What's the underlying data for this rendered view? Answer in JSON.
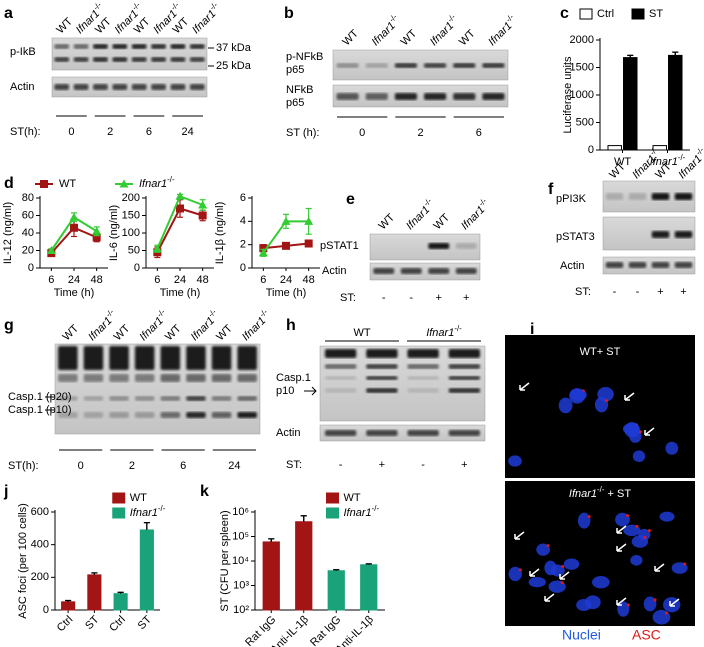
{
  "panel_letters": [
    "a",
    "b",
    "c",
    "d",
    "e",
    "f",
    "g",
    "h",
    "i",
    "j",
    "k"
  ],
  "blots": {
    "a": {
      "lanes": [
        {
          "text": "WT"
        },
        {
          "text": "Ifnar1",
          "sup": "-/-"
        },
        {
          "text": "WT"
        },
        {
          "text": "Ifnar1",
          "sup": "-/-"
        },
        {
          "text": "WT"
        },
        {
          "text": "Ifnar1",
          "sup": "-/-"
        },
        {
          "text": "WT"
        },
        {
          "text": "Ifnar1",
          "sup": "-/-"
        }
      ],
      "rows": [
        [
          "p-IkB"
        ],
        [
          "Actin"
        ]
      ],
      "markers": [
        "37 kDa",
        "25 kDa"
      ],
      "time_label": "ST(h):",
      "times": [
        "0",
        "2",
        "6",
        "24"
      ]
    },
    "b": {
      "lanes": [
        {
          "text": "WT"
        },
        {
          "text": "Ifnar1",
          "sup": "-/-"
        },
        {
          "text": "WT"
        },
        {
          "text": "Ifnar1",
          "sup": "-/-"
        },
        {
          "text": "WT"
        },
        {
          "text": "Ifnar1",
          "sup": "-/-"
        }
      ],
      "rows": [
        [
          "p-NFkB",
          "p65"
        ],
        [
          "NFkB",
          "p65"
        ]
      ],
      "time_label": "ST (h):",
      "times": [
        "0",
        "2",
        "6"
      ]
    },
    "e": {
      "lanes": [
        {
          "text": "WT"
        },
        {
          "text": "Ifnar1",
          "sup": "-/-"
        },
        {
          "text": "WT"
        },
        {
          "text": "Ifnar1",
          "sup": "-/-"
        }
      ],
      "rows": [
        [
          "pSTAT1"
        ],
        [
          "Actin"
        ]
      ],
      "st_label": "ST:",
      "st": [
        "-",
        "-",
        "+",
        "+"
      ]
    },
    "f": {
      "lanes": [
        {
          "text": "WT"
        },
        {
          "text": "Ifnar1",
          "sup": "-/-"
        },
        {
          "text": "WT"
        },
        {
          "text": "Ifnar1",
          "sup": "-/-"
        }
      ],
      "rows": [
        [
          "pPI3K"
        ],
        [
          "pSTAT3"
        ],
        [
          "Actin"
        ]
      ],
      "st_label": "ST:",
      "st": [
        "-",
        "-",
        "+",
        "+"
      ]
    },
    "g": {
      "lanes": [
        {
          "text": "WT"
        },
        {
          "text": "Ifnar1",
          "sup": "-/-"
        },
        {
          "text": "WT"
        },
        {
          "text": "Ifnar1",
          "sup": "-/-"
        },
        {
          "text": "WT"
        },
        {
          "text": "Ifnar1",
          "sup": "-/-"
        },
        {
          "text": "WT"
        },
        {
          "text": "Ifnar1",
          "sup": "-/-"
        }
      ],
      "rows": [
        [
          "Casp.1 (p20)",
          "Casp.1 (p10)"
        ]
      ],
      "time_label": "ST(h):",
      "times": [
        "0",
        "2",
        "6",
        "24"
      ]
    },
    "h": {
      "groups": [
        {
          "text": "WT"
        },
        {
          "text": "Ifnar1",
          "sup": "-/-"
        }
      ],
      "rows": [
        [
          "Casp.1",
          "p10"
        ],
        [
          "Actin"
        ]
      ],
      "st_label": "ST:",
      "st": [
        "-",
        "+",
        "-",
        "+"
      ]
    }
  },
  "microscopy": {
    "images": [
      {
        "text": "WT+ ST"
      },
      {
        "text": "Ifnar1",
        "sup": "-/-",
        "rest": " + ST"
      }
    ],
    "legend": [
      "Nuclei",
      "ASC"
    ]
  },
  "chart_data": [
    {
      "type": "bar",
      "ylabel": "Luciferase units",
      "categories": [
        {
          "text": "WT"
        },
        {
          "text": "Ifnar1",
          "sup": "-/-"
        }
      ],
      "series": [
        {
          "name": {
            "text": "Ctrl"
          },
          "color": "#ffffff",
          "values": [
            80,
            80
          ],
          "errors": [
            null,
            null
          ]
        },
        {
          "name": {
            "text": "ST"
          },
          "color": "#000000",
          "values": [
            1680,
            1720
          ],
          "errors": [
            40,
            60
          ]
        }
      ],
      "ylim": [
        0,
        2000
      ],
      "yticks": [
        0,
        500,
        1000,
        1500,
        2000
      ],
      "legend": "top"
    },
    {
      "type": "line",
      "ylabel": "IL-12 (ng/ml)",
      "xlabel": "Time (h)",
      "categories": [
        "6",
        "24",
        "48"
      ],
      "series": [
        {
          "name": {
            "text": "WT"
          },
          "color": "#a31515",
          "marker": "square",
          "values": [
            17,
            46,
            35
          ],
          "errors": [
            2,
            10,
            5
          ]
        },
        {
          "name": {
            "text": "Ifnar1",
            "sup": "-/-"
          },
          "color": "#33cc33",
          "marker": "triangle",
          "values": [
            20,
            58,
            42
          ],
          "errors": [
            2,
            5,
            5
          ]
        }
      ],
      "ylim": [
        0,
        80
      ],
      "yticks": [
        0,
        20,
        40,
        60,
        80
      ],
      "legend": "top"
    },
    {
      "type": "line",
      "ylabel": "IL-6 (ng/ml)",
      "xlabel": "Time (h)",
      "categories": [
        "6",
        "24",
        "48"
      ],
      "series": [
        {
          "color": "#a31515",
          "marker": "square",
          "values": [
            45,
            170,
            150
          ],
          "errors": [
            15,
            25,
            15
          ]
        },
        {
          "color": "#33cc33",
          "marker": "triangle",
          "values": [
            55,
            205,
            180
          ],
          "errors": [
            10,
            5,
            15
          ]
        }
      ],
      "ylim": [
        0,
        200
      ],
      "yticks": [
        0,
        50,
        100,
        150,
        200
      ]
    },
    {
      "type": "line",
      "ylabel": "IL-1β (ng/ml)",
      "xlabel": "Time (h)",
      "categories": [
        "6",
        "24",
        "48"
      ],
      "series": [
        {
          "color": "#a31515",
          "marker": "square",
          "values": [
            1.7,
            1.9,
            2.1
          ],
          "errors": [
            0.3,
            0.2,
            0.1
          ]
        },
        {
          "color": "#33cc33",
          "marker": "triangle",
          "values": [
            1.3,
            4,
            4
          ],
          "errors": [
            0.3,
            0.6,
            1.1
          ]
        }
      ],
      "ylim": [
        0,
        6
      ],
      "yticks": [
        0,
        2,
        4,
        6
      ]
    },
    {
      "type": "bar",
      "ylabel": "ASC foci (per 100 cells)",
      "categories": [
        "Ctrl",
        "ST",
        "Ctrl",
        "ST"
      ],
      "series": [
        {
          "name": {
            "text": "WT"
          },
          "color": "#a31515",
          "values": [
            50,
            215,
            null,
            null
          ],
          "errors": [
            8,
            12,
            null,
            null
          ]
        },
        {
          "name": {
            "text": "Ifnar1",
            "sup": "-/-"
          },
          "color": "#1aa37a",
          "values": [
            null,
            null,
            100,
            490
          ],
          "errors": [
            null,
            null,
            8,
            45
          ]
        }
      ],
      "ylim": [
        0,
        600
      ],
      "yticks": [
        0,
        200,
        400,
        600
      ],
      "legend": "upper right"
    },
    {
      "type": "bar",
      "ylabel": "ST (CFU per spleen)",
      "categories": [
        "Rat IgG",
        "Anti-IL-1β",
        "Rat IgG",
        "Anti-IL-1β"
      ],
      "series": [
        {
          "name": {
            "text": "WT"
          },
          "color": "#a31515",
          "values": [
            60000,
            400000,
            null,
            null
          ],
          "errors": [
            20000,
            300000,
            null,
            null
          ]
        },
        {
          "name": {
            "text": "Ifnar1",
            "sup": "-/-"
          },
          "color": "#1aa37a",
          "values": [
            null,
            null,
            4000,
            7000
          ],
          "errors": [
            null,
            null,
            400,
            600
          ]
        }
      ],
      "ylim": [
        100,
        1000000
      ],
      "log": true,
      "yticks": [
        {
          "value": 100,
          "label": "10²"
        },
        {
          "value": 1000,
          "label": "10³"
        },
        {
          "value": 10000,
          "label": "10⁴"
        },
        {
          "value": 100000,
          "label": "10⁵"
        },
        {
          "value": 1000000,
          "label": "10⁶"
        }
      ],
      "legend": "upper right"
    }
  ]
}
